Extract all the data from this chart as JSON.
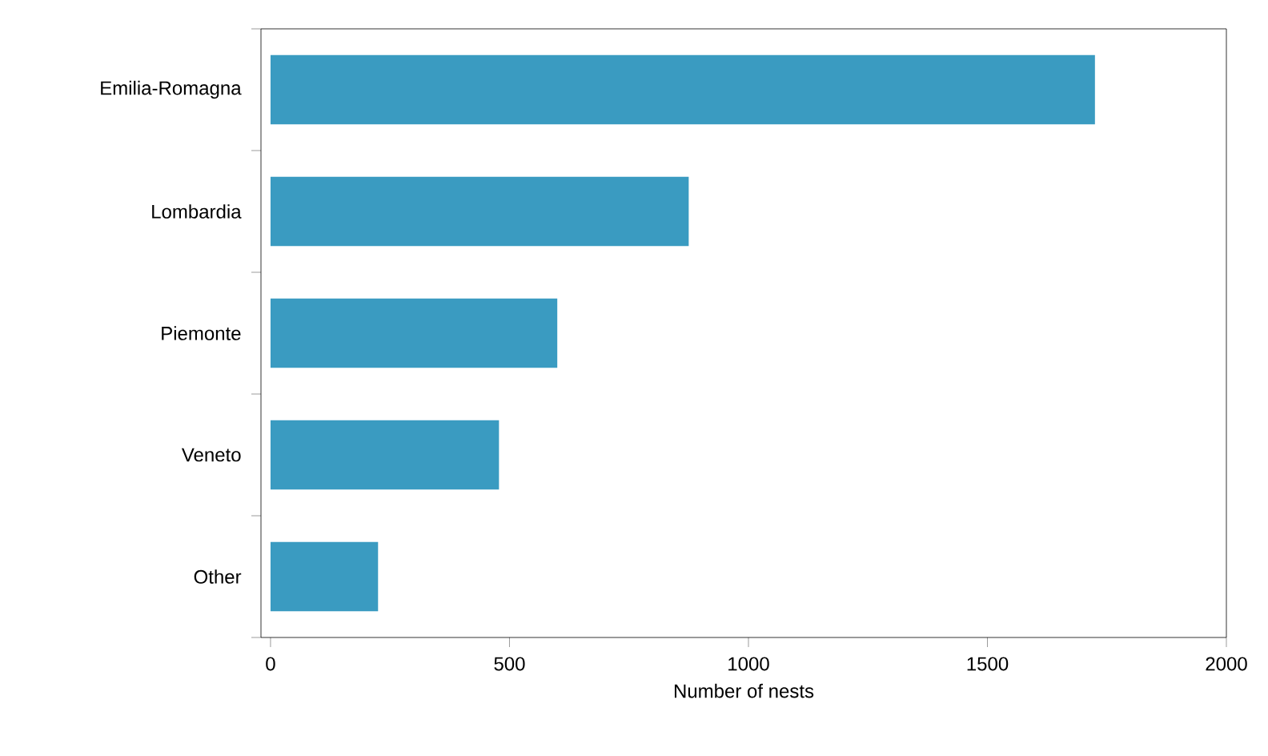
{
  "chart_data": {
    "type": "bar",
    "orientation": "horizontal",
    "xlabel": "Number of nests",
    "categories": [
      "Emilia-Romagna",
      "Lombardia",
      "Piemonte",
      "Veneto",
      "Other"
    ],
    "values": [
      1725,
      875,
      600,
      478,
      225
    ],
    "color": "#3a9bc1",
    "xlim": [
      -20,
      2000
    ],
    "xticks": [
      0,
      500,
      1000,
      1500,
      2000
    ]
  }
}
